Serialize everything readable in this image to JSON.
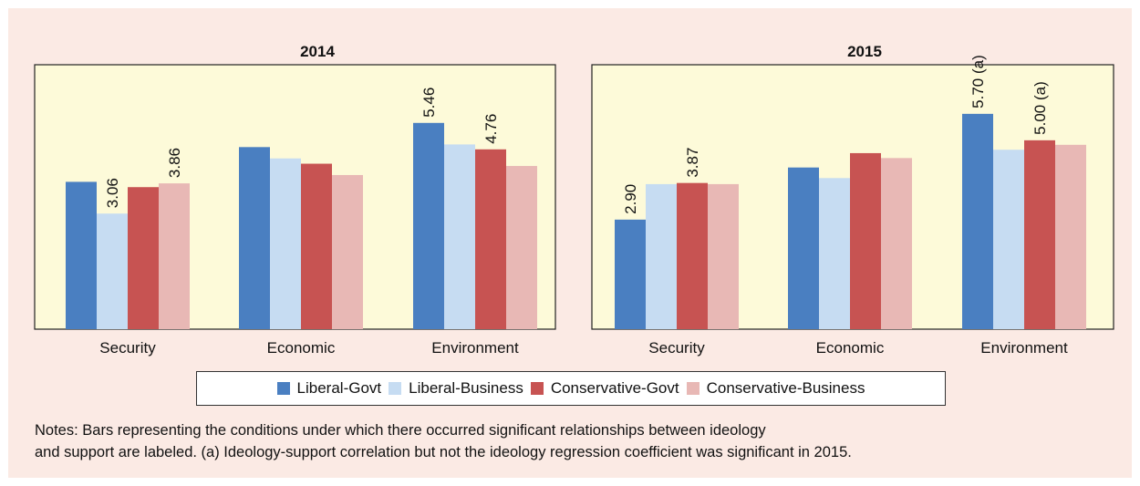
{
  "chart_data": [
    {
      "type": "bar",
      "title": "2014",
      "categories": [
        "Security",
        "Economic",
        "Environment"
      ],
      "series": [
        {
          "name": "Liberal-Govt",
          "values": [
            3.9,
            4.82,
            5.46
          ]
        },
        {
          "name": "Liberal-Business",
          "values": [
            3.06,
            4.52,
            4.89
          ]
        },
        {
          "name": "Conservative-Govt",
          "values": [
            3.76,
            4.38,
            4.76
          ]
        },
        {
          "name": "Conservative-Business",
          "values": [
            3.86,
            4.08,
            4.32
          ]
        }
      ],
      "data_labels": [
        [
          null,
          null,
          "5.46"
        ],
        [
          "3.06",
          null,
          null
        ],
        [
          null,
          null,
          "4.76"
        ],
        [
          "3.86",
          null,
          null
        ]
      ],
      "ylim": [
        0,
        7.0
      ],
      "grid": false
    },
    {
      "type": "bar",
      "title": "2015",
      "categories": [
        "Security",
        "Economic",
        "Environment"
      ],
      "series": [
        {
          "name": "Liberal-Govt",
          "values": [
            2.9,
            4.28,
            5.7
          ]
        },
        {
          "name": "Liberal-Business",
          "values": [
            3.84,
            4.0,
            4.75
          ]
        },
        {
          "name": "Conservative-Govt",
          "values": [
            3.87,
            4.66,
            5.0
          ]
        },
        {
          "name": "Conservative-Business",
          "values": [
            3.84,
            4.53,
            4.88
          ]
        }
      ],
      "data_labels": [
        [
          "2.90",
          null,
          "5.70 (a)"
        ],
        [
          null,
          null,
          null
        ],
        [
          "3.87",
          null,
          "5.00 (a)"
        ],
        [
          null,
          null,
          null
        ]
      ],
      "ylim": [
        0,
        7.0
      ],
      "grid": false
    }
  ],
  "colors": {
    "Liberal-Govt": "#4a7fc1",
    "Liberal-Business": "#c6dcf2",
    "Conservative-Govt": "#c75352",
    "Conservative-Business": "#e8b8b5",
    "plot_background": "#fdfad9",
    "frame_background": "#fbeae4"
  },
  "legend": {
    "position": "bottom",
    "items": [
      "Liberal-Govt",
      "Liberal-Business",
      "Conservative-Govt",
      "Conservative-Business"
    ]
  },
  "notes": {
    "line1": "Notes: Bars representing the conditions under which there occurred significant relationships between ideology",
    "line2": "and support are labeled. (a) Ideology-support correlation but not the ideology regression coefficient was significant in 2015."
  }
}
